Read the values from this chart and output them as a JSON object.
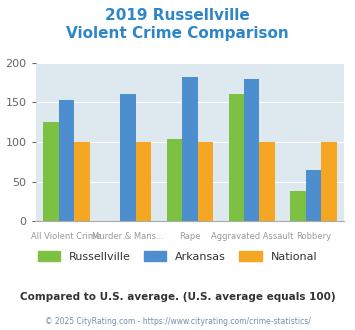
{
  "title_line1": "2019 Russellville",
  "title_line2": "Violent Crime Comparison",
  "title_color": "#2e86c8",
  "categories": [
    "All Violent Crime",
    "Murder & Mans...",
    "Rape",
    "Aggravated Assault",
    "Robbery"
  ],
  "cat_line1": [
    "",
    "Murder & Mans...",
    "",
    "Aggravated Assault",
    ""
  ],
  "cat_line2": [
    "All Violent Crime",
    "",
    "Rape",
    "",
    "Robbery"
  ],
  "russellville": [
    125,
    0,
    104,
    160,
    38
  ],
  "arkansas": [
    153,
    160,
    182,
    180,
    64
  ],
  "national": [
    100,
    100,
    100,
    100,
    100
  ],
  "color_russellville": "#7dc142",
  "color_arkansas": "#4d8fce",
  "color_national": "#f5a623",
  "ylim": [
    0,
    200
  ],
  "yticks": [
    0,
    50,
    100,
    150,
    200
  ],
  "background_color": "#dde8ef",
  "legend_labels": [
    "Russellville",
    "Arkansas",
    "National"
  ],
  "note": "Compared to U.S. average. (U.S. average equals 100)",
  "note_color": "#333333",
  "copyright": "© 2025 CityRating.com - https://www.cityrating.com/crime-statistics/",
  "copyright_color": "#7090b0",
  "bar_width": 0.25
}
